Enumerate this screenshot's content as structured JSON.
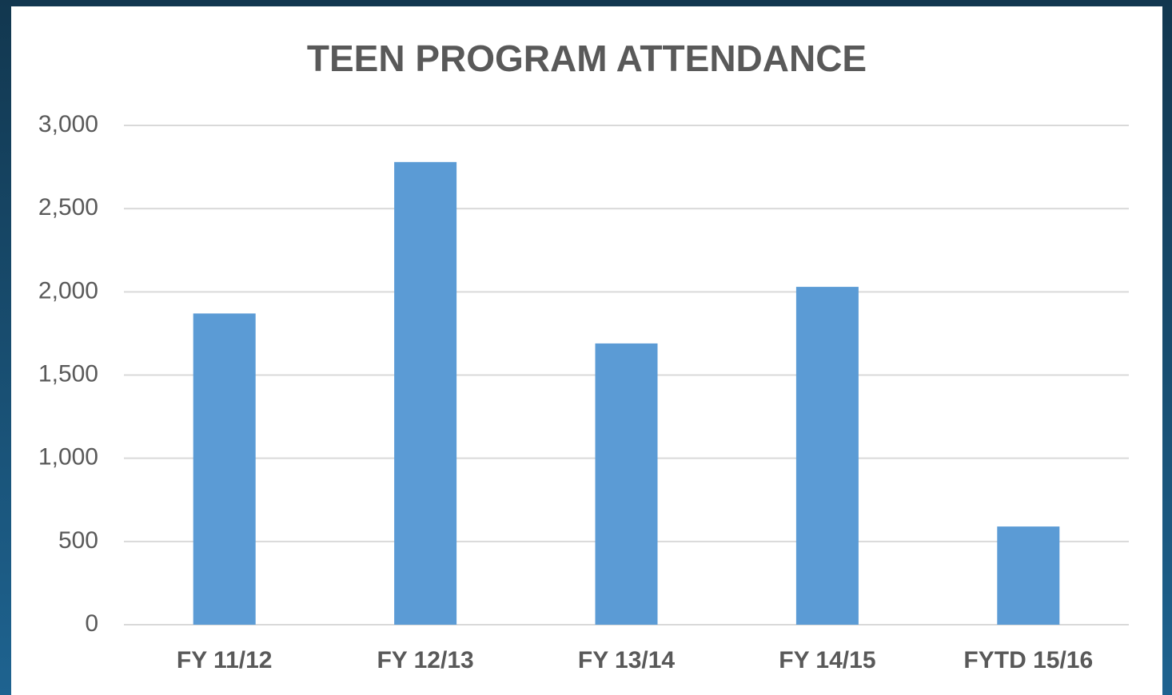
{
  "chart_data": {
    "type": "bar",
    "title": "TEEN PROGRAM ATTENDANCE",
    "categories": [
      "FY 11/12",
      "FY 12/13",
      "FY 13/14",
      "FY 14/15",
      "FYTD 15/16"
    ],
    "values": [
      1870,
      2780,
      1690,
      2030,
      590
    ],
    "color": "#5b9bd5",
    "ylim": [
      0,
      3000
    ],
    "yticks": [
      0,
      500,
      {
        "value": 1000,
        "label": "1,000"
      },
      {
        "value": 1500,
        "label": "1,500"
      },
      {
        "value": 2000,
        "label": "2,000"
      },
      {
        "value": 2500,
        "label": "2,500"
      },
      {
        "value": 3000,
        "label": "3,000"
      }
    ],
    "grid": true
  }
}
